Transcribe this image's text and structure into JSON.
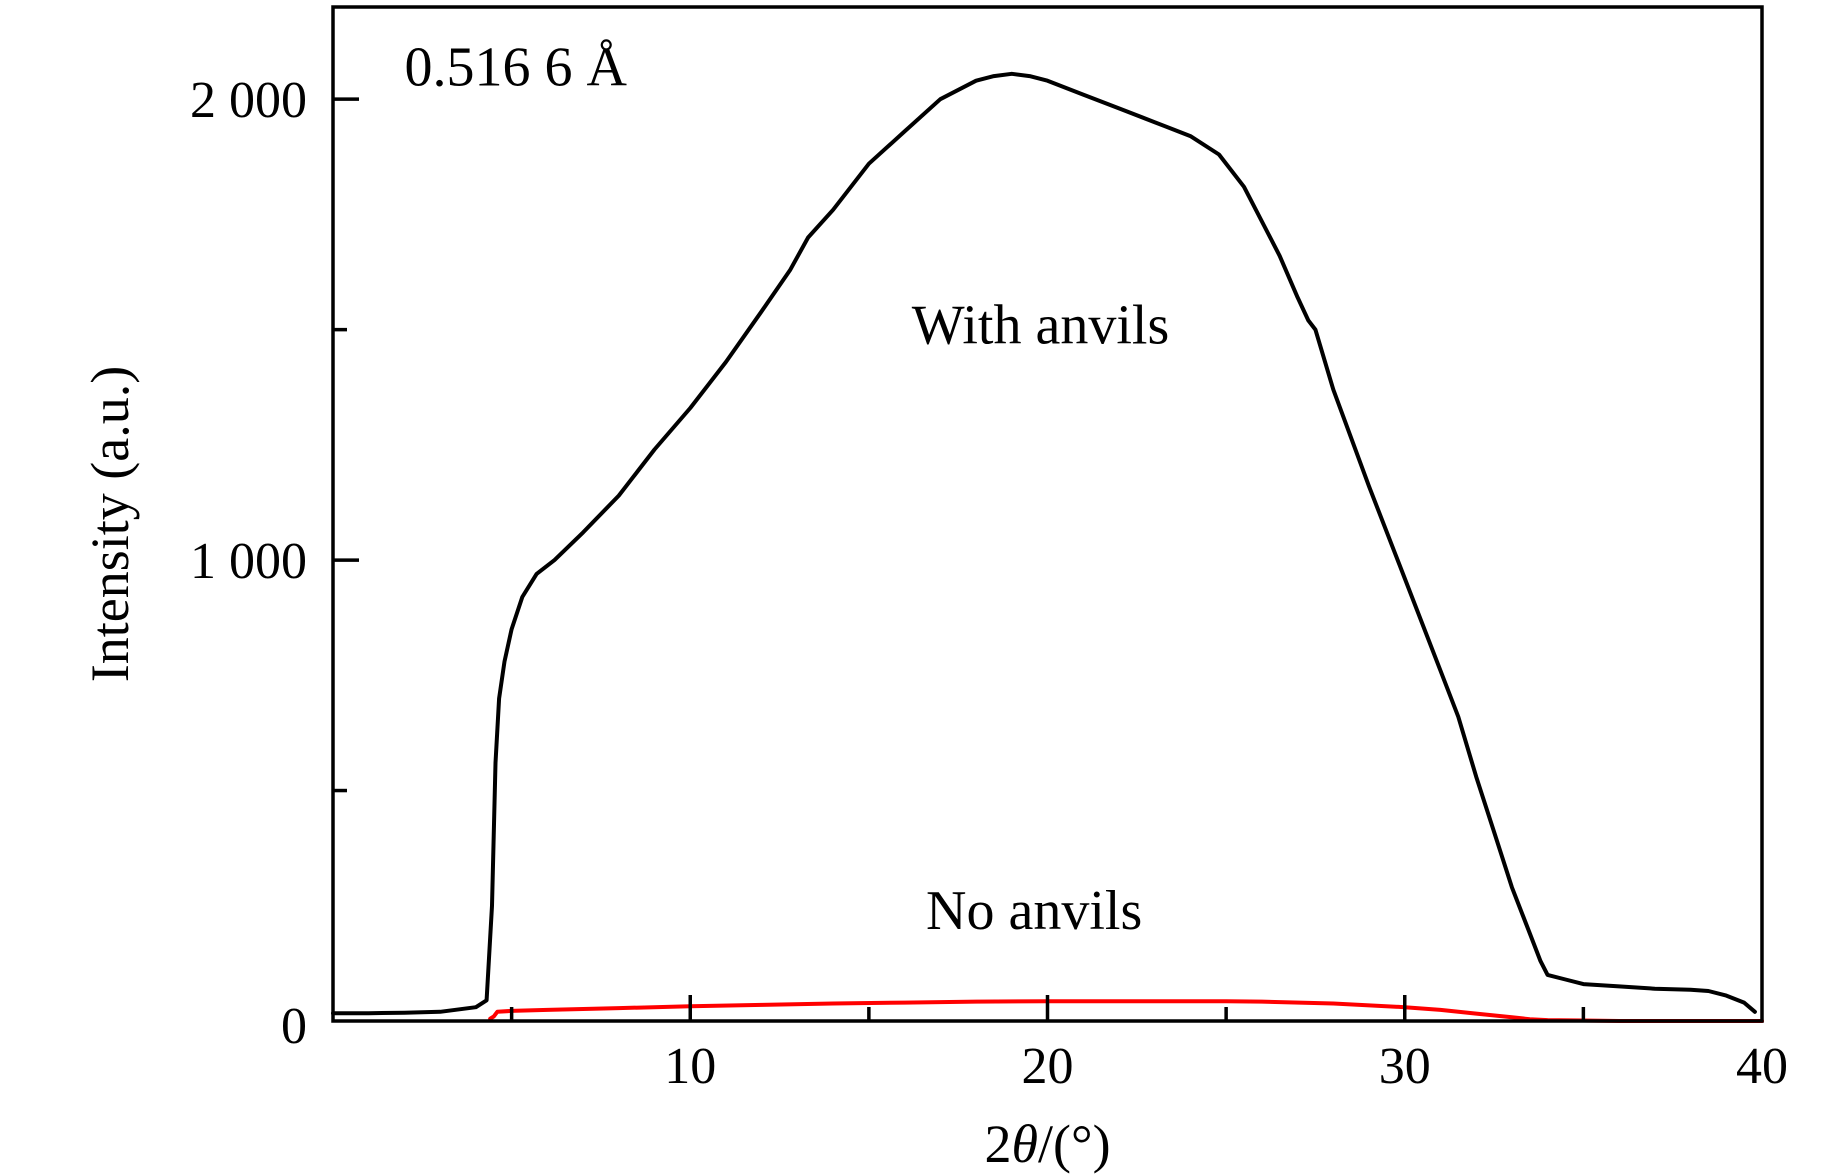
{
  "chart_data": {
    "type": "line",
    "title": "",
    "xlabel": {
      "prefix": "2",
      "symbol": "θ",
      "suffix": "/(°)"
    },
    "ylabel": "Intensity (a.u.)",
    "xlim": [
      0,
      40
    ],
    "ylim": [
      0,
      2200
    ],
    "x_major_ticks": [
      10,
      20,
      30,
      40
    ],
    "x_minor_ticks": [
      5,
      15,
      25,
      35
    ],
    "x_tick_labels": [
      "10",
      "20",
      "30",
      "40"
    ],
    "y_major_ticks": [
      0,
      1000,
      2000
    ],
    "y_minor_ticks": [
      500,
      1500
    ],
    "y_tick_labels": [
      "0",
      "1 000",
      "2 000"
    ],
    "grid": false,
    "legend": "none",
    "annotations": [
      {
        "text": "0.516 6 Å",
        "x": 2,
        "y": 2030
      },
      {
        "text": "With anvils",
        "x": 16.2,
        "y": 1470
      },
      {
        "text": "No anvils",
        "x": 16.6,
        "y": 200
      }
    ],
    "series": [
      {
        "color": "#000000",
        "x": [
          0,
          1,
          2,
          3,
          4,
          4.3,
          4.45,
          4.55,
          4.65,
          4.8,
          5.0,
          5.3,
          5.7,
          6.2,
          7,
          8,
          9,
          10,
          11,
          12,
          12.8,
          13.3,
          14,
          15,
          16,
          17,
          18,
          18.5,
          19,
          19.5,
          20,
          21,
          22,
          23,
          24,
          24.8,
          25.5,
          26.5,
          27,
          27.3,
          27.5,
          28,
          29,
          30,
          31,
          31.5,
          32,
          32.5,
          33,
          33.5,
          33.8,
          34,
          34.5,
          35,
          36,
          37,
          38,
          38.5,
          39,
          39.5,
          39.8
        ],
        "y": [
          17,
          17,
          18,
          20,
          30,
          45,
          250,
          560,
          700,
          780,
          850,
          920,
          970,
          1000,
          1060,
          1140,
          1240,
          1330,
          1430,
          1540,
          1630,
          1700,
          1760,
          1860,
          1930,
          2000,
          2040,
          2050,
          2055,
          2050,
          2040,
          2010,
          1980,
          1950,
          1920,
          1880,
          1810,
          1660,
          1570,
          1520,
          1500,
          1370,
          1160,
          960,
          760,
          660,
          530,
          410,
          290,
          190,
          130,
          100,
          90,
          80,
          75,
          70,
          68,
          65,
          55,
          40,
          20
        ]
      },
      {
        "color": "#ff0000",
        "x": [
          4.4,
          4.5,
          4.6,
          5,
          6,
          8,
          10,
          12,
          14,
          16,
          18,
          20,
          22,
          24,
          25,
          26,
          28,
          30,
          31,
          32,
          33,
          33.5,
          34,
          35,
          36,
          38,
          40
        ],
        "y": [
          5,
          10,
          20,
          22,
          24,
          28,
          32,
          35,
          38,
          40,
          42,
          43,
          43,
          43,
          43,
          42,
          38,
          30,
          24,
          16,
          8,
          4,
          2,
          1,
          0,
          0,
          0
        ]
      }
    ]
  }
}
